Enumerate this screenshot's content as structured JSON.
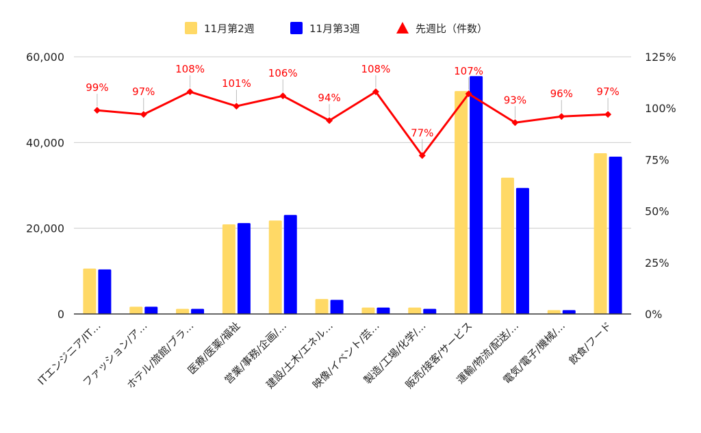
{
  "chart_data": {
    "type": "bar",
    "categories": [
      "ITエンジニア/IT…",
      "ファッション/ア…",
      "ホテル/旅館/ブラ…",
      "医療/医薬/福祉",
      "営業/事務/企画/…",
      "建設/土木/エネル…",
      "映像/イベント/芸…",
      "製造/工場/化学/…",
      "販売/接客/サービス",
      "運輸/物流/配送/…",
      "電気/電子/機械/…",
      "飲食/フード"
    ],
    "series": [
      {
        "name": "11月第2週",
        "type": "bar",
        "axis": "left",
        "color": "#FFD966",
        "values": [
          10600,
          1700,
          1200,
          20900,
          21800,
          3500,
          1500,
          1500,
          52000,
          31800,
          900,
          37500
        ]
      },
      {
        "name": "11月第3週",
        "type": "bar",
        "axis": "left",
        "color": "#0000FF",
        "values": [
          10400,
          1700,
          1200,
          21200,
          23100,
          3300,
          1500,
          1200,
          55500,
          29400,
          900,
          36700
        ]
      },
      {
        "name": "先週比（件数）",
        "type": "line",
        "axis": "right",
        "color": "#FF0000",
        "values": [
          99,
          97,
          108,
          101,
          106,
          94,
          108,
          77,
          107,
          93,
          96,
          97
        ],
        "labels": [
          "99%",
          "97%",
          "108%",
          "101%",
          "106%",
          "94%",
          "108%",
          "77%",
          "107%",
          "93%",
          "96%",
          "97%"
        ]
      }
    ],
    "y_left": {
      "min": 0,
      "max": 60000,
      "ticks": [
        "0",
        "20,000",
        "40,000",
        "60,000"
      ]
    },
    "y_right": {
      "min": 0,
      "max": 125,
      "ticks": [
        "0%",
        "25%",
        "50%",
        "75%",
        "100%",
        "125%"
      ]
    },
    "legend_position": "top",
    "grid": true
  }
}
